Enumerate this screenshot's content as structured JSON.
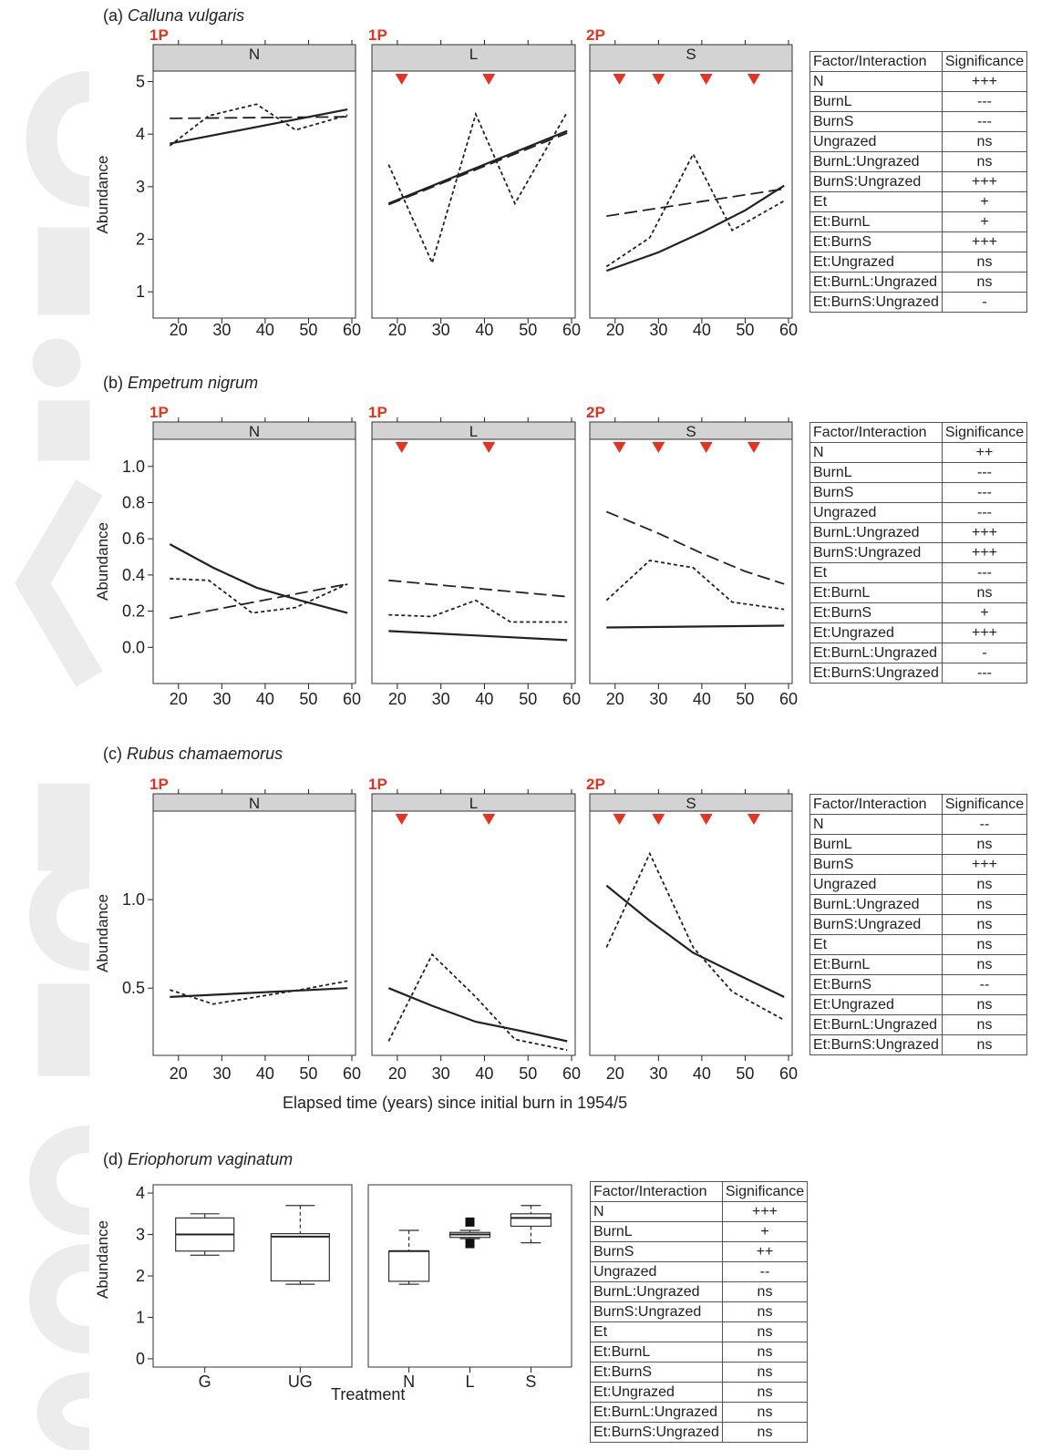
{
  "x_axis_title": "Elapsed time (years) since initial burn in 1954/5",
  "treatment_axis_title": "Treatment",
  "table_header": {
    "factor": "Factor/Interaction",
    "sig": "Significance"
  },
  "colors": {
    "marker": "#e8321f",
    "strip": "#d3d3d3",
    "line": "#222222",
    "watermark": "#e9e9e9"
  },
  "sections": [
    {
      "label": "(a)",
      "species": "Calluna vulgaris",
      "ylabel": "Abundance",
      "table": [
        {
          "factor": "N",
          "sig": "+++"
        },
        {
          "factor": "BurnL",
          "sig": "---"
        },
        {
          "factor": "BurnS",
          "sig": "---"
        },
        {
          "factor": "Ungrazed",
          "sig": "ns"
        },
        {
          "factor": "BurnL:Ungrazed",
          "sig": "ns"
        },
        {
          "factor": "BurnS:Ungrazed",
          "sig": "+++"
        },
        {
          "factor": "Et",
          "sig": "+"
        },
        {
          "factor": "Et:BurnL",
          "sig": "+"
        },
        {
          "factor": "Et:BurnS",
          "sig": "+++"
        },
        {
          "factor": "Et:Ungrazed",
          "sig": "ns"
        },
        {
          "factor": "Et:BurnL:Ungrazed",
          "sig": "ns"
        },
        {
          "factor": "Et:BurnS:Ungrazed",
          "sig": "-"
        }
      ]
    },
    {
      "label": "(b)",
      "species": "Empetrum nigrum",
      "ylabel": "Abundance",
      "table": [
        {
          "factor": "N",
          "sig": "++"
        },
        {
          "factor": "BurnL",
          "sig": "---"
        },
        {
          "factor": "BurnS",
          "sig": "---"
        },
        {
          "factor": "Ungrazed",
          "sig": "---"
        },
        {
          "factor": "BurnL:Ungrazed",
          "sig": "+++"
        },
        {
          "factor": "BurnS:Ungrazed",
          "sig": "+++"
        },
        {
          "factor": "Et",
          "sig": "---"
        },
        {
          "factor": "Et:BurnL",
          "sig": "ns"
        },
        {
          "factor": "Et:BurnS",
          "sig": "+"
        },
        {
          "factor": "Et:Ungrazed",
          "sig": "+++"
        },
        {
          "factor": "Et:BurnL:Ungrazed",
          "sig": "-"
        },
        {
          "factor": "Et:BurnS:Ungrazed",
          "sig": "---"
        }
      ]
    },
    {
      "label": "(c)",
      "species": "Rubus chamaemorus",
      "ylabel": "Abundance",
      "table": [
        {
          "factor": "N",
          "sig": "--"
        },
        {
          "factor": "BurnL",
          "sig": "ns"
        },
        {
          "factor": "BurnS",
          "sig": "+++"
        },
        {
          "factor": "Ungrazed",
          "sig": "ns"
        },
        {
          "factor": "BurnL:Ungrazed",
          "sig": "ns"
        },
        {
          "factor": "BurnS:Ungrazed",
          "sig": "ns"
        },
        {
          "factor": "Et",
          "sig": "ns"
        },
        {
          "factor": "Et:BurnL",
          "sig": "ns"
        },
        {
          "factor": "Et:BurnS",
          "sig": "--"
        },
        {
          "factor": "Et:Ungrazed",
          "sig": "ns"
        },
        {
          "factor": "Et:BurnL:Ungrazed",
          "sig": "ns"
        },
        {
          "factor": "Et:BurnS:Ungrazed",
          "sig": "ns"
        }
      ]
    },
    {
      "label": "(d)",
      "species": "Eriophorum vaginatum",
      "ylabel": "Abundance",
      "table": [
        {
          "factor": "N",
          "sig": "+++"
        },
        {
          "factor": "BurnL",
          "sig": "+"
        },
        {
          "factor": "BurnS",
          "sig": "++"
        },
        {
          "factor": "Ungrazed",
          "sig": "--"
        },
        {
          "factor": "BurnL:Ungrazed",
          "sig": "ns"
        },
        {
          "factor": "BurnS:Ungrazed",
          "sig": "ns"
        },
        {
          "factor": "Et",
          "sig": "ns"
        },
        {
          "factor": "Et:BurnL",
          "sig": "ns"
        },
        {
          "factor": "Et:BurnS",
          "sig": "ns"
        },
        {
          "factor": "Et:Ungrazed",
          "sig": "ns"
        },
        {
          "factor": "Et:BurnL:Ungrazed",
          "sig": "ns"
        },
        {
          "factor": "Et:BurnS:Ungrazed",
          "sig": "ns"
        }
      ]
    }
  ],
  "chart_data": [
    {
      "type": "line",
      "species": "Calluna vulgaris",
      "ylabel": "Abundance",
      "ylim": [
        0.5,
        5.2
      ],
      "yticks": [
        1,
        2,
        3,
        4,
        5
      ],
      "xlim": [
        15,
        60
      ],
      "xticks": [
        20,
        30,
        40,
        50,
        60
      ],
      "panels": [
        {
          "strip": "N",
          "code": "1P",
          "markers": [],
          "lines": [
            {
              "style": "solid",
              "x": [
                18,
                59
              ],
              "y": [
                3.82,
                4.47
              ]
            },
            {
              "style": "longdash",
              "x": [
                18,
                59
              ],
              "y": [
                4.3,
                4.33
              ]
            },
            {
              "style": "dotted",
              "x": [
                18,
                27,
                38,
                47,
                59
              ],
              "y": [
                3.78,
                4.35,
                4.57,
                4.08,
                4.36
              ]
            }
          ]
        },
        {
          "strip": "L",
          "code": "1P",
          "markers": [
            21,
            41
          ],
          "lines": [
            {
              "style": "solid",
              "x": [
                18,
                59
              ],
              "y": [
                2.68,
                4.06
              ]
            },
            {
              "style": "longdash",
              "x": [
                18,
                59
              ],
              "y": [
                2.66,
                4.02
              ]
            },
            {
              "style": "dotted",
              "x": [
                18,
                28,
                38,
                47,
                59
              ],
              "y": [
                3.42,
                1.55,
                4.38,
                2.68,
                4.42
              ]
            }
          ]
        },
        {
          "strip": "S",
          "code": "2P",
          "markers": [
            21,
            30,
            41,
            52
          ],
          "lines": [
            {
              "style": "solid",
              "x": [
                18,
                30,
                40,
                50,
                59
              ],
              "y": [
                1.4,
                1.75,
                2.13,
                2.55,
                3.02
              ]
            },
            {
              "style": "longdash",
              "x": [
                18,
                59
              ],
              "y": [
                2.44,
                2.96
              ]
            },
            {
              "style": "dotted",
              "x": [
                18,
                28,
                38,
                47,
                59
              ],
              "y": [
                1.48,
                2.03,
                3.62,
                2.17,
                2.73
              ]
            }
          ]
        }
      ]
    },
    {
      "type": "line",
      "species": "Empetrum nigrum",
      "ylabel": "Abundance",
      "ylim": [
        -0.2,
        1.15
      ],
      "yticks": [
        0.0,
        0.2,
        0.4,
        0.6,
        0.8,
        1.0
      ],
      "xlim": [
        15,
        60
      ],
      "xticks": [
        20,
        30,
        40,
        50,
        60
      ],
      "panels": [
        {
          "strip": "N",
          "code": "1P",
          "markers": [],
          "lines": [
            {
              "style": "solid",
              "x": [
                18,
                28,
                38,
                48,
                59
              ],
              "y": [
                0.57,
                0.44,
                0.33,
                0.26,
                0.19
              ]
            },
            {
              "style": "longdash",
              "x": [
                18,
                59
              ],
              "y": [
                0.16,
                0.35
              ]
            },
            {
              "style": "dotted",
              "x": [
                18,
                27,
                37,
                47,
                59
              ],
              "y": [
                0.38,
                0.37,
                0.19,
                0.22,
                0.35
              ]
            }
          ]
        },
        {
          "strip": "L",
          "code": "1P",
          "markers": [
            21,
            41
          ],
          "lines": [
            {
              "style": "solid",
              "x": [
                18,
                59
              ],
              "y": [
                0.09,
                0.04
              ]
            },
            {
              "style": "longdash",
              "x": [
                18,
                59
              ],
              "y": [
                0.37,
                0.28
              ]
            },
            {
              "style": "dotted",
              "x": [
                18,
                28,
                38,
                46,
                59
              ],
              "y": [
                0.18,
                0.17,
                0.26,
                0.14,
                0.14
              ]
            }
          ]
        },
        {
          "strip": "S",
          "code": "2P",
          "markers": [
            21,
            30,
            41,
            52
          ],
          "lines": [
            {
              "style": "solid",
              "x": [
                18,
                59
              ],
              "y": [
                0.11,
                0.12
              ]
            },
            {
              "style": "longdash",
              "x": [
                18,
                30,
                40,
                50,
                59
              ],
              "y": [
                0.75,
                0.63,
                0.52,
                0.42,
                0.35
              ]
            },
            {
              "style": "dotted",
              "x": [
                18,
                28,
                38,
                47,
                59
              ],
              "y": [
                0.26,
                0.48,
                0.44,
                0.25,
                0.21
              ]
            }
          ]
        }
      ]
    },
    {
      "type": "line",
      "species": "Rubus chamaemorus",
      "ylabel": "Abundance",
      "ylim": [
        0.12,
        1.5
      ],
      "yticks": [
        0.5,
        1.0
      ],
      "xlim": [
        15,
        60
      ],
      "xticks": [
        20,
        30,
        40,
        50,
        60
      ],
      "panels": [
        {
          "strip": "N",
          "code": "1P",
          "markers": [],
          "lines": [
            {
              "style": "solid",
              "x": [
                18,
                59
              ],
              "y": [
                0.45,
                0.5
              ]
            },
            {
              "style": "dotted",
              "x": [
                18,
                28,
                38,
                48,
                59
              ],
              "y": [
                0.49,
                0.41,
                0.45,
                0.49,
                0.54
              ]
            }
          ]
        },
        {
          "strip": "L",
          "code": "1P",
          "markers": [
            21,
            41
          ],
          "lines": [
            {
              "style": "solid",
              "x": [
                18,
                28,
                38,
                48,
                59
              ],
              "y": [
                0.5,
                0.4,
                0.31,
                0.26,
                0.2
              ]
            },
            {
              "style": "dotted",
              "x": [
                18,
                28,
                38,
                47,
                59
              ],
              "y": [
                0.2,
                0.69,
                0.45,
                0.21,
                0.15
              ]
            }
          ]
        },
        {
          "strip": "S",
          "code": "2P",
          "markers": [
            21,
            30,
            41,
            52
          ],
          "lines": [
            {
              "style": "solid",
              "x": [
                18,
                28,
                38,
                48,
                59
              ],
              "y": [
                1.08,
                0.88,
                0.7,
                0.58,
                0.45
              ]
            },
            {
              "style": "dotted",
              "x": [
                18,
                28,
                38,
                47,
                59
              ],
              "y": [
                0.73,
                1.26,
                0.73,
                0.48,
                0.32
              ]
            }
          ]
        }
      ]
    },
    {
      "type": "box",
      "species": "Eriophorum vaginatum",
      "ylabel": "Abundance",
      "xlabel": "Treatment",
      "ylim": [
        -0.2,
        4.2
      ],
      "yticks": [
        0,
        1,
        2,
        3,
        4
      ],
      "panels": [
        {
          "boxes": [
            {
              "label": "G",
              "whislo": 2.5,
              "q1": 2.6,
              "med": 3.0,
              "q3": 3.4,
              "whishi": 3.5,
              "outliers": []
            },
            {
              "label": "UG",
              "whislo": 1.8,
              "q1": 1.88,
              "med": 2.95,
              "q3": 3.02,
              "whishi": 3.7,
              "outliers": []
            }
          ]
        },
        {
          "boxes": [
            {
              "label": "N",
              "whislo": 1.8,
              "q1": 1.87,
              "med": 2.6,
              "q3": 2.6,
              "whishi": 3.1,
              "outliers": []
            },
            {
              "label": "L",
              "whislo": 2.9,
              "q1": 2.93,
              "med": 3.0,
              "q3": 3.05,
              "whishi": 3.1,
              "outliers": [
                3.3,
                2.78
              ]
            },
            {
              "label": "S",
              "whislo": 2.8,
              "q1": 3.2,
              "med": 3.4,
              "q3": 3.5,
              "whishi": 3.7,
              "outliers": []
            }
          ]
        }
      ]
    }
  ]
}
